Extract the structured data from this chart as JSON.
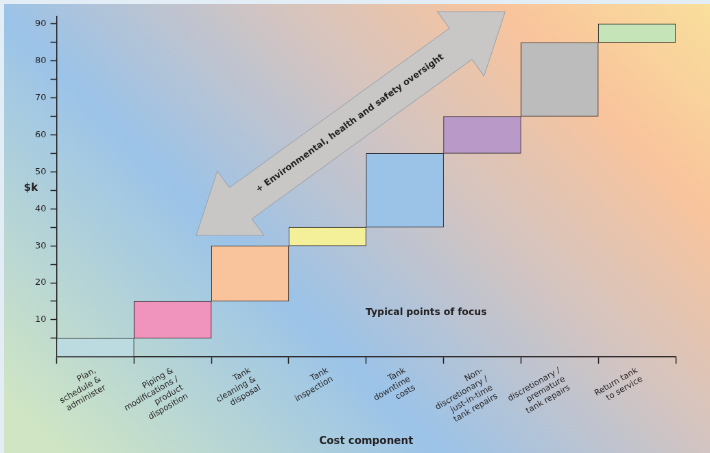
{
  "chart_data": {
    "type": "bar",
    "xlabel": "Cost component",
    "ylabel": "$k",
    "categories": [
      "Plan,\nschedule &\nadminister",
      "Piping &\nmodifications /\nproduct\ndisposition",
      "Tank\ncleaning &\ndisposal",
      "Tank\ninspection",
      "Tank\ndowntime\ncosts",
      "Non-\ndiscretionary /\njust-in-time\ntank repairs",
      "discretionary /\npremature\ntank repairs",
      "Return tank\nto service"
    ],
    "values": [
      5,
      10,
      15,
      5,
      20,
      10,
      20,
      5
    ],
    "base": [
      0,
      5,
      15,
      30,
      35,
      55,
      65,
      85
    ],
    "colors": [
      "#bcdbe0",
      "#f093bd",
      "#f9c49c",
      "#f4f09a",
      "#9bc3e8",
      "#b999c8",
      "#bcbcbc",
      "#c5e5b8"
    ],
    "ylim": [
      0,
      92
    ],
    "yticks": [
      {
        "value": 5,
        "label": null
      },
      10,
      {
        "value": 15,
        "label": null
      },
      20,
      {
        "value": 25,
        "label": null
      },
      30,
      {
        "value": 35,
        "label": null
      },
      40,
      {
        "value": 45,
        "label": null
      },
      50,
      {
        "value": 55,
        "label": null
      },
      60,
      {
        "value": 65,
        "label": null
      },
      70,
      {
        "value": 75,
        "label": null
      },
      80,
      {
        "value": 85,
        "label": null
      },
      90
    ],
    "grid": false,
    "legend": false,
    "annotations": [
      "+ Environmental, health and safety oversight",
      "Typical points of focus"
    ]
  }
}
